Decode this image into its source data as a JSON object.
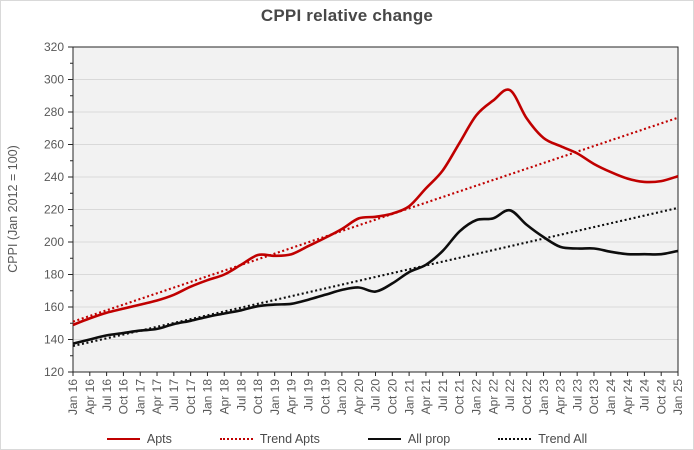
{
  "title": "CPPI relative change",
  "chart_data": {
    "type": "line",
    "title": "CPPI relative change",
    "xlabel": "",
    "ylabel": "CPPI (Jan 2012 = 100)",
    "ylim": [
      120,
      320
    ],
    "yticks": [
      120,
      140,
      160,
      180,
      200,
      220,
      240,
      260,
      280,
      300,
      320
    ],
    "grid": true,
    "legend_position": "bottom",
    "plot_bg": "#F2F2F2",
    "gridline_color": "#D9D9D9",
    "axis_color": "#262626",
    "categories": [
      "Jan 16",
      "Apr 16",
      "Jul 16",
      "Oct 16",
      "Jan 17",
      "Apr 17",
      "Jul 17",
      "Oct 17",
      "Jan 18",
      "Apr 18",
      "Jul 18",
      "Oct 18",
      "Jan 19",
      "Apr 19",
      "Jul 19",
      "Oct 19",
      "Jan 20",
      "Apr 20",
      "Jul 20",
      "Oct 20",
      "Jan 21",
      "Apr 21",
      "Jul 21",
      "Oct 21",
      "Jan 22",
      "Apr 22",
      "Jul 22",
      "Oct 22",
      "Jan 23",
      "Apr 23",
      "Jul 23",
      "Oct 23",
      "Jan 24",
      "Apr 24",
      "Jul 24",
      "Oct 24",
      "Jan 25"
    ],
    "series": [
      {
        "name": "Apts",
        "color": "#C00000",
        "line": "solid",
        "values": [
          149,
          153,
          156.5,
          159,
          161.5,
          164,
          167.5,
          172.5,
          176.5,
          180,
          186,
          192,
          191.5,
          192.5,
          197.5,
          202.5,
          208,
          214.5,
          215.5,
          217.5,
          222,
          233,
          244,
          261,
          278,
          287,
          293.5,
          276,
          264,
          259,
          254.5,
          248,
          243,
          239,
          237,
          237.5,
          240.5
        ]
      },
      {
        "name": "Trend Apts",
        "color": "#C00000",
        "line": "dotted",
        "trend_endpoints": [
          151,
          276.5
        ]
      },
      {
        "name": "All prop",
        "color": "#0D0D0D",
        "line": "solid",
        "values": [
          137.5,
          140,
          142.5,
          144,
          145.5,
          146.5,
          149.5,
          151.5,
          154,
          156,
          158,
          160.5,
          161.5,
          162,
          164.5,
          167.5,
          170.5,
          172,
          169.5,
          174.5,
          181.5,
          186,
          194.5,
          206.5,
          213.5,
          214.5,
          219.5,
          210.5,
          203,
          197,
          196,
          196,
          194,
          192.5,
          192.5,
          192.5,
          194.5
        ]
      },
      {
        "name": "Trend All",
        "color": "#0D0D0D",
        "line": "dotted",
        "trend_endpoints": [
          136,
          221
        ]
      }
    ]
  }
}
